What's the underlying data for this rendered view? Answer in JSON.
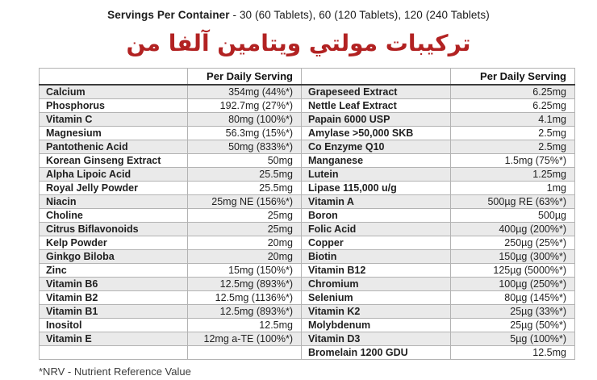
{
  "page": {
    "servings_bold": "Servings Per Container",
    "servings_rest": " - 30 (60 Tablets), 60 (120 Tablets), 120 (240 Tablets)",
    "title": "تركيبات مولتي ويتامين آلفا من",
    "title_color": "#b22222",
    "footnote": "*NRV - Nutrient Reference Value"
  },
  "table": {
    "value_header": "Per Daily Serving",
    "left_rows": [
      {
        "label": "Calcium",
        "value": "354mg (44%*)"
      },
      {
        "label": "Phosphorus",
        "value": "192.7mg (27%*)"
      },
      {
        "label": "Vitamin C",
        "value": "80mg (100%*)"
      },
      {
        "label": "Magnesium",
        "value": "56.3mg (15%*)"
      },
      {
        "label": "Pantothenic Acid",
        "value": "50mg (833%*)"
      },
      {
        "label": "Korean Ginseng Extract",
        "value": "50mg"
      },
      {
        "label": "Alpha Lipoic Acid",
        "value": "25.5mg"
      },
      {
        "label": "Royal Jelly Powder",
        "value": "25.5mg"
      },
      {
        "label": "Niacin",
        "value": "25mg NE (156%*)"
      },
      {
        "label": "Choline",
        "value": "25mg"
      },
      {
        "label": "Citrus Biflavonoids",
        "value": "25mg"
      },
      {
        "label": "Kelp Powder",
        "value": "20mg"
      },
      {
        "label": "Ginkgo Biloba",
        "value": "20mg"
      },
      {
        "label": "Zinc",
        "value": "15mg (150%*)"
      },
      {
        "label": "Vitamin B6",
        "value": "12.5mg (893%*)"
      },
      {
        "label": "Vitamin B2",
        "value": "12.5mg (1136%*)"
      },
      {
        "label": "Vitamin B1",
        "value": "12.5mg (893%*)"
      },
      {
        "label": "Inositol",
        "value": "12.5mg"
      },
      {
        "label": "Vitamin E",
        "value": "12mg a-TE (100%*)"
      },
      {
        "label": "",
        "value": ""
      }
    ],
    "right_rows": [
      {
        "label": "Grapeseed Extract",
        "value": "6.25mg"
      },
      {
        "label": "Nettle Leaf Extract",
        "value": "6.25mg"
      },
      {
        "label": "Papain 6000 USP",
        "value": "4.1mg"
      },
      {
        "label": "Amylase >50,000 SKB",
        "value": "2.5mg"
      },
      {
        "label": "Co Enzyme Q10",
        "value": "2.5mg"
      },
      {
        "label": "Manganese",
        "value": "1.5mg (75%*)"
      },
      {
        "label": "Lutein",
        "value": "1.25mg"
      },
      {
        "label": "Lipase 115,000 u/g",
        "value": "1mg"
      },
      {
        "label": "Vitamin A",
        "value": "500µg RE (63%*)"
      },
      {
        "label": "Boron",
        "value": "500µg"
      },
      {
        "label": "Folic Acid",
        "value": "400µg (200%*)"
      },
      {
        "label": "Copper",
        "value": "250µg (25%*)"
      },
      {
        "label": "Biotin",
        "value": "150µg (300%*)"
      },
      {
        "label": "Vitamin B12",
        "value": "125µg (5000%*)"
      },
      {
        "label": "Chromium",
        "value": "100µg (250%*)"
      },
      {
        "label": "Selenium",
        "value": "80µg (145%*)"
      },
      {
        "label": "Vitamin K2",
        "value": "25µg (33%*)"
      },
      {
        "label": "Molybdenum",
        "value": "25µg (50%*)"
      },
      {
        "label": "Vitamin D3",
        "value": "5µg (100%*)"
      },
      {
        "label": "Bromelain 1200 GDU",
        "value": "12.5mg"
      }
    ]
  }
}
